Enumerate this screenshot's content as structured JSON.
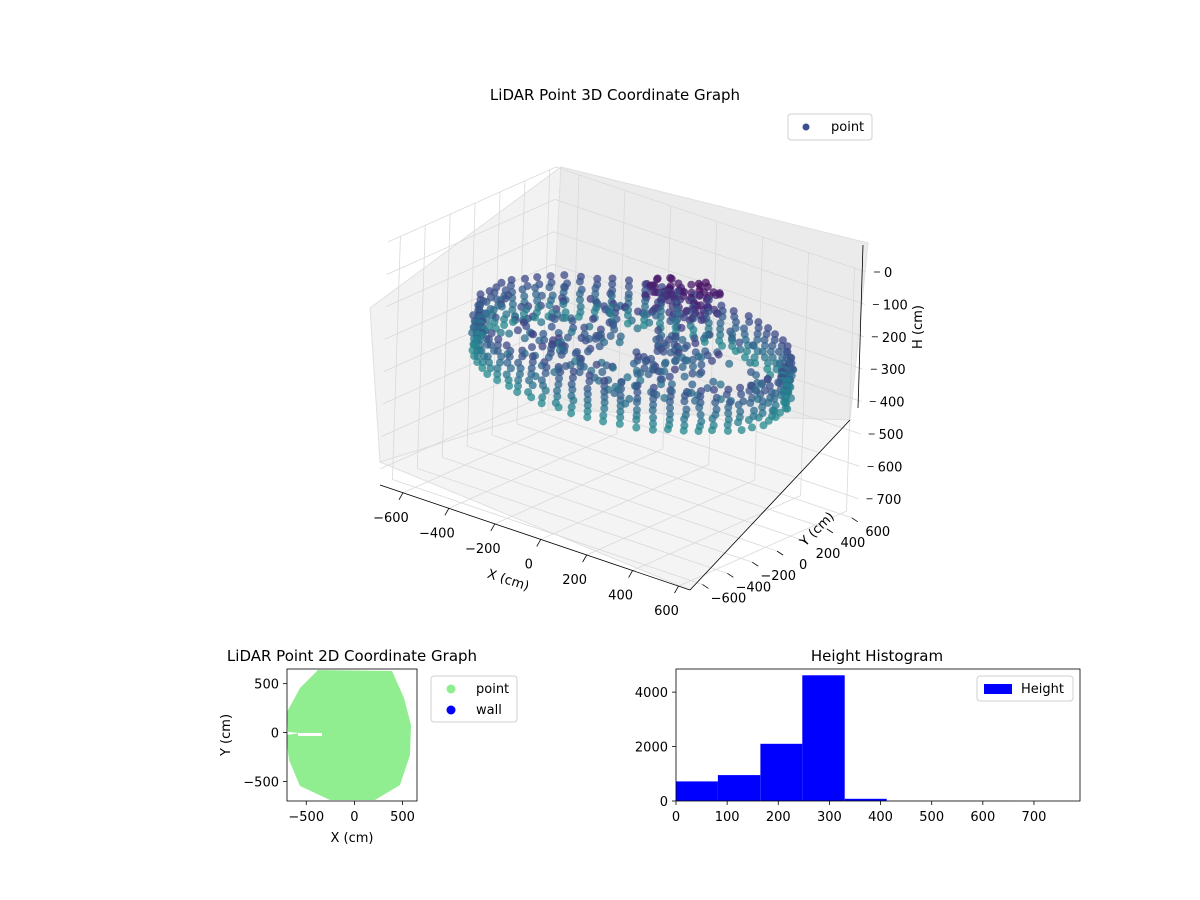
{
  "chart_data": [
    {
      "type": "scatter",
      "projection": "3d",
      "title": "LiDAR Point 3D Coordinate Graph",
      "xlabel": "X (cm)",
      "ylabel": "Y (cm)",
      "zlabel": "H (cm)",
      "xlim": [
        -700,
        650
      ],
      "ylim": [
        -700,
        650
      ],
      "zlim": [
        0,
        750
      ],
      "z_axis_inverted": true,
      "x_ticks": [
        -600,
        -400,
        -200,
        0,
        200,
        400,
        600
      ],
      "y_ticks": [
        -600,
        -400,
        -200,
        0,
        200,
        400,
        600
      ],
      "z_ticks": [
        0,
        100,
        200,
        300,
        400,
        500,
        600,
        700
      ],
      "legend": {
        "position": "top-right",
        "entries": [
          "point"
        ]
      },
      "grid": true,
      "colormap": "viridis",
      "marker_color_legend": "#3b4f8f",
      "description_of_series": "ring of wall points around ~600 cm radius at heights ~230-370 cm, with a purple cluster near X~-100..200, Y~400 at heights ~150-250 cm"
    },
    {
      "type": "scatter",
      "title": "LiDAR Point 2D Coordinate Graph",
      "xlabel": "X (cm)",
      "ylabel": "Y (cm)",
      "xlim": [
        -700,
        650
      ],
      "ylim": [
        -700,
        650
      ],
      "x_ticks": [
        -500,
        0,
        500
      ],
      "y_ticks": [
        -500,
        0,
        500
      ],
      "legend": {
        "position": "outside-right",
        "entries": [
          "point",
          "wall"
        ]
      },
      "series": [
        {
          "name": "point",
          "color": "#90ee90"
        },
        {
          "name": "wall",
          "color": "#0000ff"
        }
      ]
    },
    {
      "type": "bar",
      "title": "Height Histogram",
      "legend": {
        "position": "top-right",
        "entries": [
          "Height"
        ]
      },
      "color": "#0000ff",
      "xlim": [
        0,
        790
      ],
      "ylim": [
        0,
        4850
      ],
      "x_ticks": [
        0,
        100,
        200,
        300,
        400,
        500,
        600,
        700
      ],
      "y_ticks": [
        0,
        2000,
        4000
      ],
      "bin_edges": [
        0,
        82,
        165,
        247,
        330,
        412,
        495,
        577,
        660,
        742,
        825
      ],
      "values": [
        720,
        950,
        2100,
        4620,
        80,
        5,
        2,
        2,
        1,
        1
      ]
    }
  ]
}
